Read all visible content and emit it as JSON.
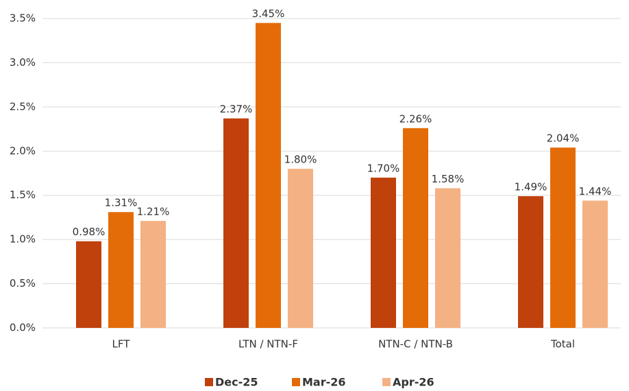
{
  "chart_data": {
    "type": "bar",
    "categories": [
      "LFT",
      "LTN / NTN-F",
      "NTN-C / NTN-B",
      "Total"
    ],
    "series": [
      {
        "name": "Dec-25",
        "color": "#c0410c",
        "values": [
          0.98,
          2.37,
          1.7,
          1.49
        ],
        "value_labels": [
          "0.98%",
          "2.37%",
          "1.70%",
          "1.49%"
        ]
      },
      {
        "name": "Mar-26",
        "color": "#e36c09",
        "values": [
          1.31,
          3.45,
          2.26,
          2.04
        ],
        "value_labels": [
          "1.31%",
          "3.45%",
          "2.26%",
          "2.04%"
        ]
      },
      {
        "name": "Apr-26",
        "color": "#f4b183",
        "values": [
          1.21,
          1.8,
          1.58,
          1.44
        ],
        "value_labels": [
          "1.21%",
          "1.80%",
          "1.58%",
          "1.44%"
        ]
      }
    ],
    "ylim": [
      0,
      3.5
    ],
    "yticks": [
      {
        "value": 0,
        "label": "0.0%"
      },
      {
        "value": 0.5,
        "label": "0.5%"
      },
      {
        "value": 1,
        "label": "1.0%"
      },
      {
        "value": 1.5,
        "label": "1.5%"
      },
      {
        "value": 2,
        "label": "2.0%"
      },
      {
        "value": 2.5,
        "label": "2.5%"
      },
      {
        "value": 3,
        "label": "3.0%"
      },
      {
        "value": 3.5,
        "label": "3.5%"
      }
    ],
    "grid": true
  }
}
